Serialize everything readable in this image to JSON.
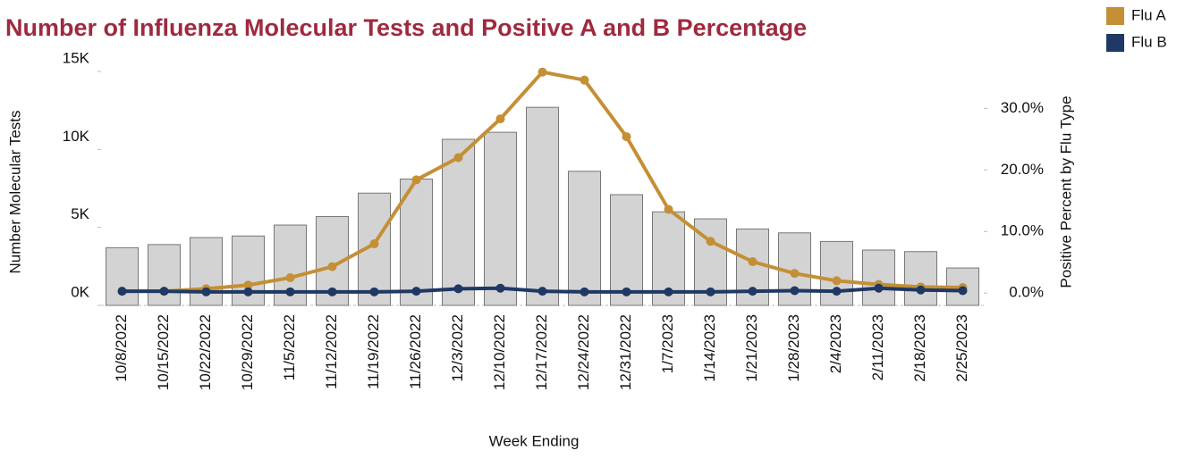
{
  "chart_data": {
    "type": "bar_line",
    "title": "Number of Influenza Molecular Tests and Positive A and B Percentage",
    "xlabel": "Week Ending",
    "ylabel": "Number Molecular Tests",
    "y2label": "Positive Percent by Flu Type",
    "categories": [
      "10/8/2022",
      "10/15/2022",
      "10/22/2022",
      "10/29/2022",
      "11/5/2022",
      "11/12/2022",
      "11/19/2022",
      "11/26/2022",
      "12/3/2022",
      "12/10/2022",
      "12/17/2022",
      "12/24/2022",
      "12/31/2022",
      "1/7/2023",
      "1/14/2023",
      "1/21/2023",
      "1/28/2023",
      "2/4/2023",
      "2/11/2023",
      "2/18/2023",
      "2/25/2023"
    ],
    "values": [
      3700,
      3900,
      4350,
      4450,
      5150,
      5700,
      7200,
      8100,
      10650,
      11100,
      12700,
      8600,
      7100,
      6000,
      5550,
      4900,
      4650,
      4100,
      3550,
      3450,
      2400
    ],
    "color": "#d3d3d3",
    "series": [
      {
        "name": "Flu A",
        "color": "#c48f35",
        "axis": "y2",
        "values": [
          0.3,
          0.3,
          0.7,
          1.3,
          2.5,
          4.3,
          8.0,
          18.4,
          22.0,
          28.3,
          35.9,
          34.6,
          25.4,
          13.6,
          8.4,
          5.1,
          3.2,
          2.0,
          1.4,
          1.0,
          0.9
        ]
      },
      {
        "name": "Flu B",
        "color": "#1f3864",
        "axis": "y2",
        "values": [
          0.3,
          0.3,
          0.2,
          0.2,
          0.2,
          0.2,
          0.2,
          0.3,
          0.7,
          0.8,
          0.3,
          0.2,
          0.2,
          0.2,
          0.2,
          0.3,
          0.4,
          0.3,
          0.8,
          0.5,
          0.4
        ]
      }
    ],
    "ylim": [
      0,
      15000
    ],
    "yticks": [
      {
        "value": 0,
        "label": "0K"
      },
      {
        "value": 5000,
        "label": "5K"
      },
      {
        "value": 10000,
        "label": "10K"
      },
      {
        "value": 15000,
        "label": "15K"
      }
    ],
    "y2lim": [
      -2,
      36
    ],
    "y2ticks": [
      {
        "value": 0,
        "label": "0.0%"
      },
      {
        "value": 10,
        "label": "10.0%"
      },
      {
        "value": 20,
        "label": "20.0%"
      },
      {
        "value": 30,
        "label": "30.0%"
      }
    ],
    "grid": false,
    "legend": "top-right"
  }
}
